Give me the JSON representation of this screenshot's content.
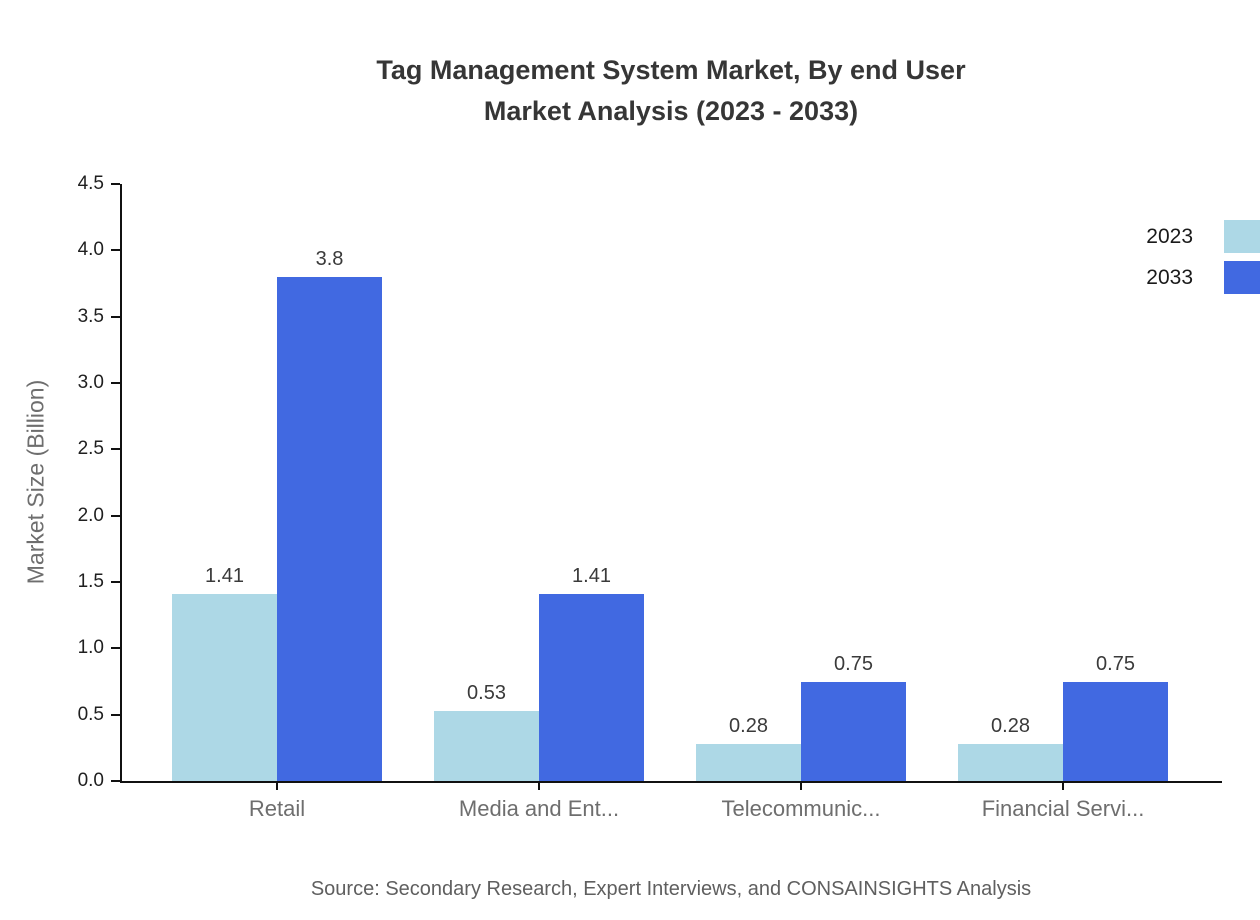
{
  "title": {
    "line1": "Tag Management System Market, By end User",
    "line2": "Market Analysis (2023 - 2033)"
  },
  "chart_data": {
    "type": "bar",
    "categories": [
      "Retail",
      "Media and Ent...",
      "Telecommunic...",
      "Financial Servi..."
    ],
    "series": [
      {
        "name": "2023",
        "color": "#ADD8E6",
        "values": [
          1.41,
          0.53,
          0.28,
          0.28
        ],
        "labels": [
          "1.41",
          "0.53",
          "0.28",
          "0.28"
        ]
      },
      {
        "name": "2033",
        "color": "#4169E1",
        "values": [
          3.8,
          1.41,
          0.75,
          0.75
        ],
        "labels": [
          "3.8",
          "1.41",
          "0.75",
          "0.75"
        ]
      }
    ],
    "title": "Tag Management System Market, By end User Market Analysis (2023 - 2033)",
    "xlabel": "",
    "ylabel": "Market Size (Billion)",
    "ylim": [
      0,
      4.5
    ],
    "yticks": [
      0.0,
      0.5,
      1.0,
      1.5,
      2.0,
      2.5,
      3.0,
      3.5,
      4.0,
      4.5
    ],
    "ytick_labels": [
      "0.0",
      "0.5",
      "1.0",
      "1.5",
      "2.0",
      "2.5",
      "3.0",
      "3.5",
      "4.0",
      "4.5"
    ],
    "grid": false,
    "legend_position": "upper right"
  },
  "source": "Source: Secondary Research, Expert Interviews, and CONSAINSIGHTS Analysis"
}
